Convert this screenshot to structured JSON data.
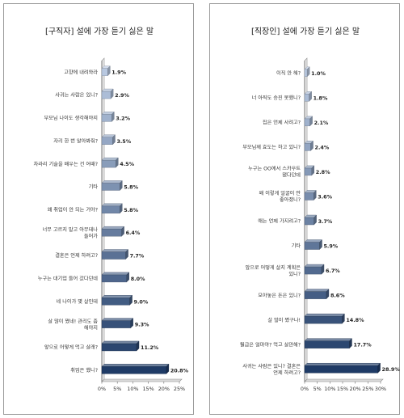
{
  "chart_data": [
    {
      "type": "bar",
      "orientation": "horizontal",
      "title": "[구직자] 설에 가장 듣기 싫은 말",
      "categories": [
        "고향에 내려와라",
        "사귀는 사람은 있니?",
        "부모님 나이도 생각해야지",
        "자리 한 번 알아봐줘?",
        "차라리 기술을 배우는 건 어때?",
        "기타",
        "왜 취업이 안 되는 거야?",
        "너무 고르지 말고 아무데나 들어가",
        "결혼은 언제 하려고?",
        "누구는 대기업 들어 갔다던데",
        "네 나이가 몇 살인데",
        "살 많이 쪘네! 관리도 좀 해야지",
        "앞으로 어떻게 먹고 살래?",
        "취업은 했니?"
      ],
      "values": [
        1.9,
        2.9,
        3.2,
        3.5,
        4.5,
        5.8,
        5.8,
        6.4,
        7.7,
        8.0,
        9.0,
        9.3,
        11.2,
        20.8
      ],
      "value_labels": [
        "1.9%",
        "2.9%",
        "3.2%",
        "3.5%",
        "4.5%",
        "5.8%",
        "5.8%",
        "6.4%",
        "7.7%",
        "8.0%",
        "9.0%",
        "9.3%",
        "11.2%",
        "20.8%"
      ],
      "xlim": [
        0,
        25
      ],
      "xticks": [
        "0%",
        "5%",
        "10%",
        "15%",
        "20%",
        "25%"
      ],
      "grid": false,
      "colors": {
        "light": "#b8c8e0",
        "dark": "#1f3b66"
      }
    },
    {
      "type": "bar",
      "orientation": "horizontal",
      "title": "[직장인] 설에 가장 듣기 싫은 말",
      "categories": [
        "이직 안 해?",
        "너 아직도 승진 못했니?",
        "집은 언제 사려고?",
        "부모님께 효도는 하고 있니?",
        "누구는 OO에서 스카우트 됐다던데",
        "왜 이렇게 얼굴이 안 좋아졌니?",
        "애는 언제 가지려고?",
        "기타",
        "앞으로 어떻게 살지 계획은 있니?",
        "모아놓은 돈은 있니?",
        "살 많이 쪘구나!",
        "월급은 얼마야? 먹고 살만해?",
        "사귀는 사람은 있니? 결혼은 언제 하려고?"
      ],
      "values": [
        1.0,
        1.8,
        2.1,
        2.4,
        2.8,
        3.6,
        3.7,
        5.9,
        6.7,
        8.6,
        14.8,
        17.7,
        28.9
      ],
      "value_labels": [
        "1.0%",
        "1.8%",
        "2.1%",
        "2.4%",
        "2.8%",
        "3.6%",
        "3.7%",
        "5.9%",
        "6.7%",
        "8.6%",
        "14.8%",
        "17.7%",
        "28.9%"
      ],
      "xlim": [
        0,
        30
      ],
      "xticks": [
        "0%",
        "5%",
        "10%",
        "15%",
        "20%",
        "25%",
        "30%"
      ],
      "grid": false,
      "colors": {
        "light": "#b8c8e0",
        "dark": "#1f3b66"
      }
    }
  ]
}
